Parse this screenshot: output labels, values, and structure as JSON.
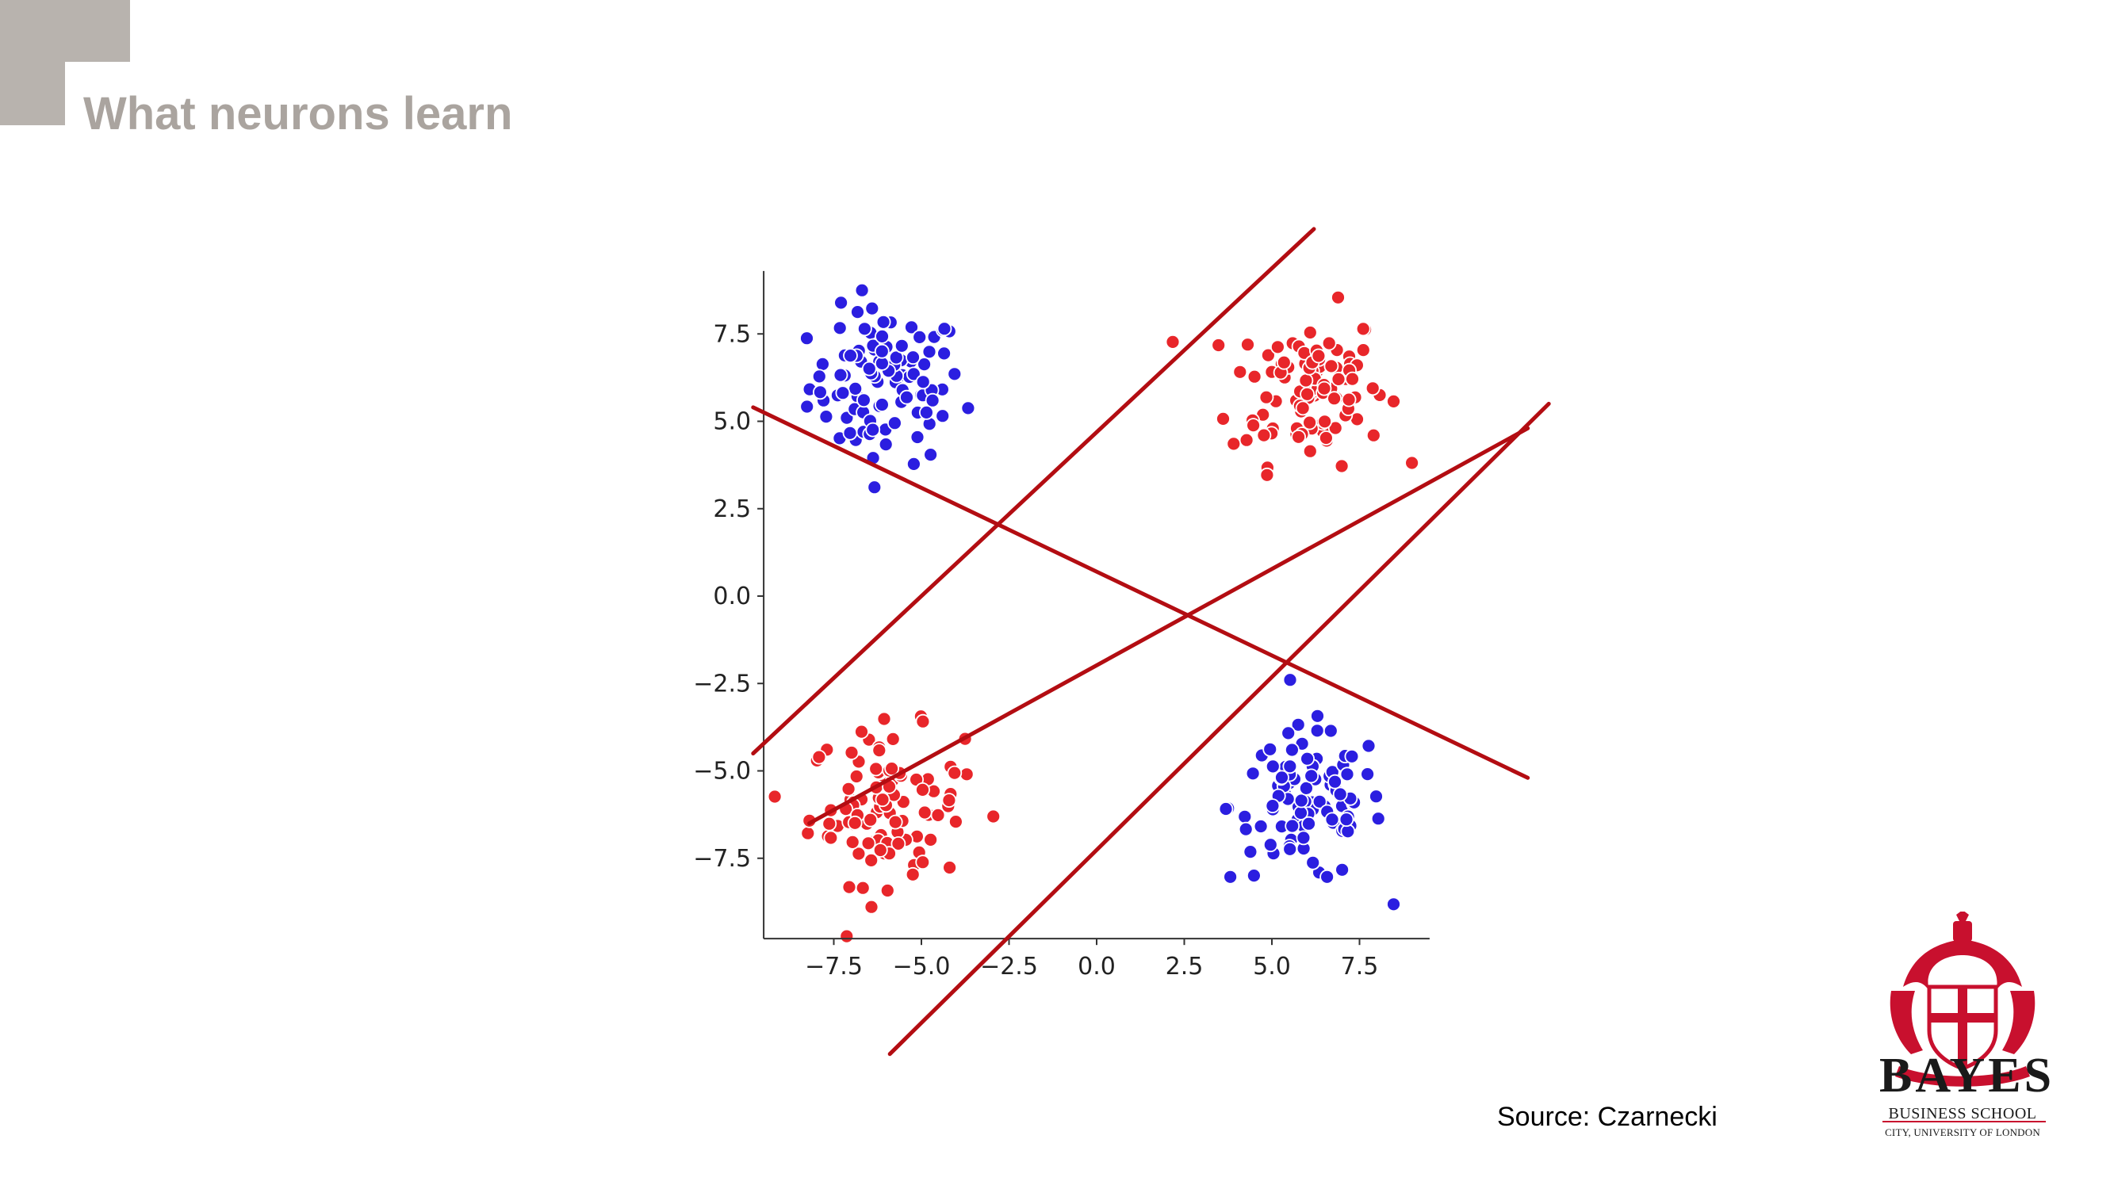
{
  "slide": {
    "title": "What neurons learn",
    "source": "Source: Czarnecki"
  },
  "logo": {
    "name": "BAYES",
    "subtitle": "BUSINESS SCHOOL",
    "tagline": "CITY, UNIVERSITY OF LONDON",
    "color": "#c8102e"
  },
  "colors": {
    "accent_block": "#b8b3ae",
    "title": "#aaa49f",
    "line": "#b30d12",
    "class_blue": "#2b1ee0",
    "class_red": "#e8262a"
  },
  "chart_data": {
    "type": "scatter",
    "title": "",
    "xlabel": "",
    "ylabel": "",
    "xlim": [
      -9.5,
      9.5
    ],
    "ylim": [
      -9.8,
      9.3
    ],
    "xticks": [
      -7.5,
      -5.0,
      -2.5,
      0.0,
      2.5,
      5.0,
      7.5
    ],
    "yticks": [
      -7.5,
      -5.0,
      -2.5,
      0.0,
      2.5,
      5.0,
      7.5
    ],
    "xtick_labels": [
      "−7.5",
      "−5.0",
      "−2.5",
      "0.0",
      "2.5",
      "5.0",
      "7.5"
    ],
    "ytick_labels": [
      "−7.5",
      "−5.0",
      "−2.5",
      "0.0",
      "2.5",
      "5.0",
      "7.5"
    ],
    "grid": false,
    "clusters": [
      {
        "class": "blue",
        "center": [
          -6.0,
          6.0
        ],
        "n": 100,
        "spread": 1.1
      },
      {
        "class": "red",
        "center": [
          6.0,
          6.0
        ],
        "n": 100,
        "spread": 1.1
      },
      {
        "class": "red",
        "center": [
          -6.0,
          -6.0
        ],
        "n": 100,
        "spread": 1.1
      },
      {
        "class": "blue",
        "center": [
          6.0,
          -6.0
        ],
        "n": 100,
        "spread": 1.1
      }
    ],
    "decision_lines": [
      {
        "p1": [
          -9.8,
          5.4
        ],
        "p2": [
          12.3,
          -5.2
        ]
      },
      {
        "p1": [
          -9.8,
          -4.5
        ],
        "p2": [
          6.2,
          10.5
        ]
      },
      {
        "p1": [
          -8.2,
          -6.5
        ],
        "p2": [
          12.3,
          4.8
        ]
      },
      {
        "p1": [
          -5.9,
          -13.1
        ],
        "p2": [
          12.9,
          5.5
        ]
      }
    ]
  }
}
